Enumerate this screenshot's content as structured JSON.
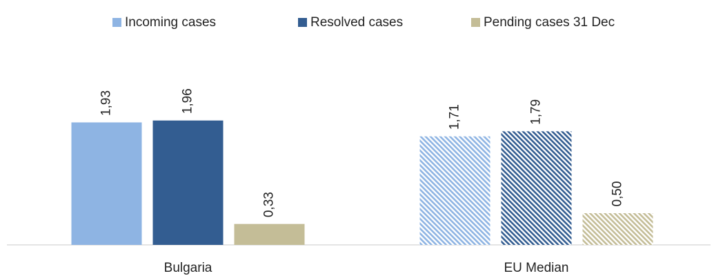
{
  "chart_data": {
    "type": "bar",
    "categories": [
      "Bulgaria",
      "EU Median"
    ],
    "hatch": [
      false,
      true
    ],
    "series": [
      {
        "name": "Incoming cases",
        "color": "#8EB4E3",
        "values": [
          1.93,
          1.71
        ],
        "value_labels": [
          "1,93",
          "1,71"
        ]
      },
      {
        "name": "Resolved cases",
        "color": "#335D91",
        "values": [
          1.96,
          1.79
        ],
        "value_labels": [
          "1,96",
          "1,79"
        ]
      },
      {
        "name": "Pending cases 31 Dec",
        "color": "#C4BD97",
        "values": [
          0.33,
          0.5
        ],
        "value_labels": [
          "0,33",
          "0,50"
        ]
      }
    ],
    "legend": "top"
  }
}
